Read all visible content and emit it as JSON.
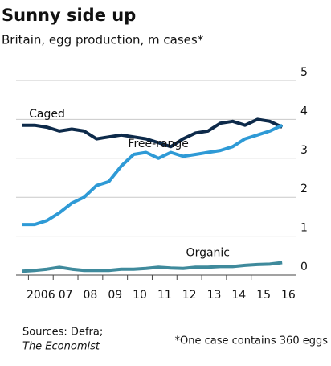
{
  "chart_data": {
    "type": "line",
    "title": "Sunny side up",
    "subtitle": "Britain, egg production, m cases*",
    "x": [
      2005.75,
      2006.25,
      2006.75,
      2007.25,
      2007.75,
      2008.25,
      2008.75,
      2009.25,
      2009.75,
      2010.25,
      2010.75,
      2011.25,
      2011.75,
      2012.25,
      2012.75,
      2013.25,
      2013.75,
      2014.25,
      2014.75,
      2015.25,
      2015.75,
      2016.25
    ],
    "series": [
      {
        "name": "Caged",
        "color": "#0d2a4a",
        "values": [
          3.85,
          3.85,
          3.8,
          3.7,
          3.75,
          3.7,
          3.5,
          3.55,
          3.6,
          3.55,
          3.5,
          3.4,
          3.3,
          3.5,
          3.65,
          3.7,
          3.9,
          3.95,
          3.85,
          4.0,
          3.95,
          3.8
        ]
      },
      {
        "name": "Free-range",
        "color": "#2e9ad6",
        "values": [
          1.3,
          1.3,
          1.4,
          1.6,
          1.85,
          2.0,
          2.3,
          2.4,
          2.8,
          3.1,
          3.15,
          3.0,
          3.15,
          3.05,
          3.1,
          3.15,
          3.2,
          3.3,
          3.5,
          3.6,
          3.7,
          3.85
        ]
      },
      {
        "name": "Organic",
        "color": "#3f8a9c",
        "values": [
          0.1,
          0.12,
          0.15,
          0.2,
          0.15,
          0.12,
          0.12,
          0.12,
          0.15,
          0.15,
          0.17,
          0.2,
          0.18,
          0.17,
          0.2,
          0.2,
          0.22,
          0.22,
          0.25,
          0.27,
          0.28,
          0.32
        ]
      }
    ],
    "xlim": [
      2005.5,
      2016.6
    ],
    "xticks": [
      {
        "value": 2006.5,
        "label": "2006"
      },
      {
        "value": 2007.5,
        "label": "07"
      },
      {
        "value": 2008.5,
        "label": "08"
      },
      {
        "value": 2009.5,
        "label": "09"
      },
      {
        "value": 2010.5,
        "label": "10"
      },
      {
        "value": 2011.5,
        "label": "11"
      },
      {
        "value": 2012.5,
        "label": "12"
      },
      {
        "value": 2013.5,
        "label": "13"
      },
      {
        "value": 2014.5,
        "label": "14"
      },
      {
        "value": 2015.5,
        "label": "15"
      },
      {
        "value": 2016.5,
        "label": "16"
      }
    ],
    "ylim": [
      0,
      5
    ],
    "yticks": [
      0,
      1,
      2,
      3,
      4,
      5
    ],
    "grid": true,
    "sources": [
      "Sources: Defra;",
      "The Economist"
    ],
    "footnote": "*One case contains 360 eggs"
  }
}
